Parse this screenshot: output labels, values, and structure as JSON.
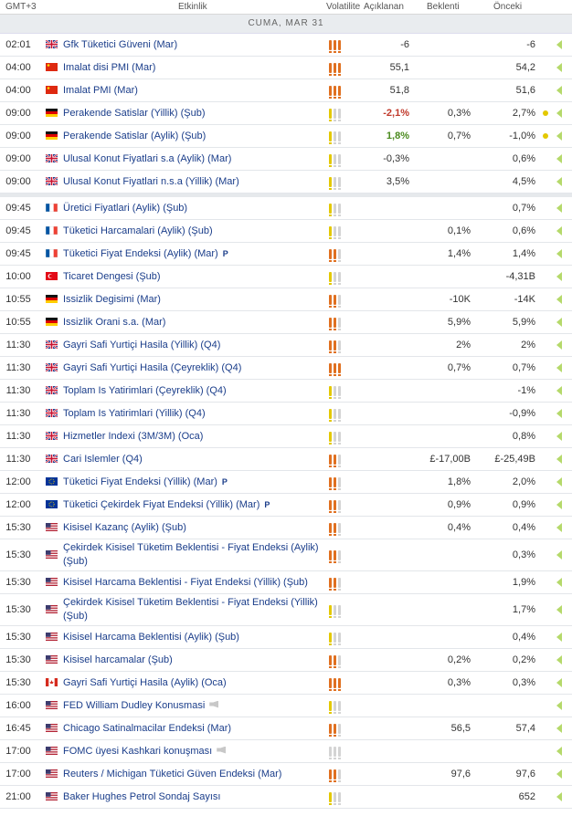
{
  "header": {
    "tz": "GMT+3",
    "event": "Etkinlik",
    "volatility": "Volatilite",
    "actual": "Açıklanan",
    "forecast": "Beklenti",
    "previous": "Önceki"
  },
  "day_label": "CUMA, MAR 31",
  "colors": {
    "high": "#e07020",
    "medium": "#e3c800",
    "none": "#d4d4d4",
    "link": "#1a3d8a"
  },
  "rows": [
    {
      "time": "02:01",
      "flag": "gb",
      "event": "Gfk Tüketici Güveni (Mar)",
      "vol": 3,
      "actual": "-6",
      "forecast": "",
      "previous": "-6"
    },
    {
      "time": "04:00",
      "flag": "cn",
      "event": "Imalat disi PMI (Mar)",
      "vol": 3,
      "actual": "55,1",
      "forecast": "",
      "previous": "54,2"
    },
    {
      "time": "04:00",
      "flag": "cn",
      "event": "Imalat PMI (Mar)",
      "vol": 3,
      "actual": "51,8",
      "forecast": "",
      "previous": "51,6"
    },
    {
      "time": "09:00",
      "flag": "de",
      "event": "Perakende Satislar (Yillik) (Şub)",
      "vol": 1,
      "actual": "-2,1%",
      "actual_style": "neg",
      "forecast": "0,3%",
      "previous": "2,7%",
      "dot": true
    },
    {
      "time": "09:00",
      "flag": "de",
      "event": "Perakende Satislar (Aylik) (Şub)",
      "vol": 1,
      "actual": "1,8%",
      "actual_style": "pos",
      "forecast": "0,7%",
      "previous": "-1,0%",
      "dot": true
    },
    {
      "time": "09:00",
      "flag": "gb",
      "event": "Ulusal Konut Fiyatlari s.a (Aylik) (Mar)",
      "vol": 1,
      "actual": "-0,3%",
      "forecast": "",
      "previous": "0,6%"
    },
    {
      "time": "09:00",
      "flag": "gb",
      "event": "Ulusal Konut Fiyatlari n.s.a (Yillik) (Mar)",
      "vol": 1,
      "actual": "3,5%",
      "forecast": "",
      "previous": "4,5%"
    },
    {
      "time": "09:45",
      "flag": "fr",
      "event": "Üretici Fiyatlari (Aylik) (Şub)",
      "vol": 1,
      "actual": "",
      "forecast": "",
      "previous": "0,7%",
      "gap": true
    },
    {
      "time": "09:45",
      "flag": "fr",
      "event": "Tüketici Harcamalari (Aylik) (Şub)",
      "vol": 1,
      "actual": "",
      "forecast": "0,1%",
      "previous": "0,6%"
    },
    {
      "time": "09:45",
      "flag": "fr",
      "event": "Tüketici Fiyat Endeksi (Aylik) (Mar)",
      "p": "P",
      "vol": 2,
      "actual": "",
      "forecast": "1,4%",
      "previous": "1,4%"
    },
    {
      "time": "10:00",
      "flag": "tr",
      "event": "Ticaret Dengesi (Şub)",
      "vol": 1,
      "actual": "",
      "forecast": "",
      "previous": "-4,31B"
    },
    {
      "time": "10:55",
      "flag": "de",
      "event": "Issizlik Degisimi (Mar)",
      "vol": 2,
      "actual": "",
      "forecast": "-10K",
      "previous": "-14K"
    },
    {
      "time": "10:55",
      "flag": "de",
      "event": "Issizlik Orani s.a. (Mar)",
      "vol": 2,
      "actual": "",
      "forecast": "5,9%",
      "previous": "5,9%"
    },
    {
      "time": "11:30",
      "flag": "gb",
      "event": "Gayri Safi Yurtiçi Hasila (Yillik) (Q4)",
      "vol": 2,
      "actual": "",
      "forecast": "2%",
      "previous": "2%"
    },
    {
      "time": "11:30",
      "flag": "gb",
      "event": "Gayri Safi Yurtiçi Hasila (Çeyreklik) (Q4)",
      "vol": 3,
      "actual": "",
      "forecast": "0,7%",
      "previous": "0,7%"
    },
    {
      "time": "11:30",
      "flag": "gb",
      "event": "Toplam Is Yatirimlari (Çeyreklik) (Q4)",
      "vol": 1,
      "actual": "",
      "forecast": "",
      "previous": "-1%"
    },
    {
      "time": "11:30",
      "flag": "gb",
      "event": "Toplam Is Yatirimlari (Yillik) (Q4)",
      "vol": 1,
      "actual": "",
      "forecast": "",
      "previous": "-0,9%"
    },
    {
      "time": "11:30",
      "flag": "gb",
      "event": "Hizmetler Indexi (3M/3M) (Oca)",
      "vol": 1,
      "actual": "",
      "forecast": "",
      "previous": "0,8%"
    },
    {
      "time": "11:30",
      "flag": "gb",
      "event": "Cari Islemler (Q4)",
      "vol": 2,
      "actual": "",
      "forecast": "£-17,00B",
      "previous": "£-25,49B"
    },
    {
      "time": "12:00",
      "flag": "eu",
      "event": "Tüketici Fiyat Endeksi (Yillik) (Mar)",
      "p": "P",
      "vol": 2,
      "actual": "",
      "forecast": "1,8%",
      "previous": "2,0%"
    },
    {
      "time": "12:00",
      "flag": "eu",
      "event": "Tüketici Çekirdek Fiyat Endeksi (Yillik) (Mar)",
      "p": "P",
      "vol": 2,
      "actual": "",
      "forecast": "0,9%",
      "previous": "0,9%"
    },
    {
      "time": "15:30",
      "flag": "us",
      "event": "Kisisel Kazanç (Aylik) (Şub)",
      "vol": 2,
      "actual": "",
      "forecast": "0,4%",
      "previous": "0,4%"
    },
    {
      "time": "15:30",
      "flag": "us",
      "event": "Çekirdek Kisisel Tüketim Beklentisi - Fiyat Endeksi (Aylik) (Şub)",
      "vol": 2,
      "actual": "",
      "forecast": "",
      "previous": "0,3%",
      "tall": true
    },
    {
      "time": "15:30",
      "flag": "us",
      "event": "Kisisel Harcama Beklentisi - Fiyat Endeksi (Yillik) (Şub)",
      "vol": 2,
      "actual": "",
      "forecast": "",
      "previous": "1,9%"
    },
    {
      "time": "15:30",
      "flag": "us",
      "event": "Çekirdek Kisisel Tüketim Beklentisi - Fiyat Endeksi (Yillik) (Şub)",
      "vol": 1,
      "actual": "",
      "forecast": "",
      "previous": "1,7%",
      "tall": true
    },
    {
      "time": "15:30",
      "flag": "us",
      "event": "Kisisel Harcama Beklentisi (Aylik) (Şub)",
      "vol": 1,
      "actual": "",
      "forecast": "",
      "previous": "0,4%"
    },
    {
      "time": "15:30",
      "flag": "us",
      "event": "Kisisel harcamalar (Şub)",
      "vol": 2,
      "actual": "",
      "forecast": "0,2%",
      "previous": "0,2%"
    },
    {
      "time": "15:30",
      "flag": "ca",
      "event": "Gayri Safi Yurtiçi Hasila (Aylik) (Oca)",
      "vol": 3,
      "actual": "",
      "forecast": "0,3%",
      "previous": "0,3%"
    },
    {
      "time": "16:00",
      "flag": "us",
      "event": "FED William Dudley Konusmasi",
      "speech": true,
      "vol": 1,
      "actual": "",
      "forecast": "",
      "previous": ""
    },
    {
      "time": "16:45",
      "flag": "us",
      "event": "Chicago Satinalmacilar Endeksi (Mar)",
      "vol": 2,
      "actual": "",
      "forecast": "56,5",
      "previous": "57,4"
    },
    {
      "time": "17:00",
      "flag": "us",
      "event": "FOMC üyesi Kashkari konuşması",
      "speech": true,
      "vol": 0,
      "actual": "",
      "forecast": "",
      "previous": ""
    },
    {
      "time": "17:00",
      "flag": "us",
      "event": "Reuters / Michigan Tüketici Güven Endeksi (Mar)",
      "vol": 2,
      "actual": "",
      "forecast": "97,6",
      "previous": "97,6"
    },
    {
      "time": "21:00",
      "flag": "us",
      "event": "Baker Hughes Petrol Sondaj Sayısı",
      "vol": 1,
      "actual": "",
      "forecast": "",
      "previous": "652"
    }
  ]
}
